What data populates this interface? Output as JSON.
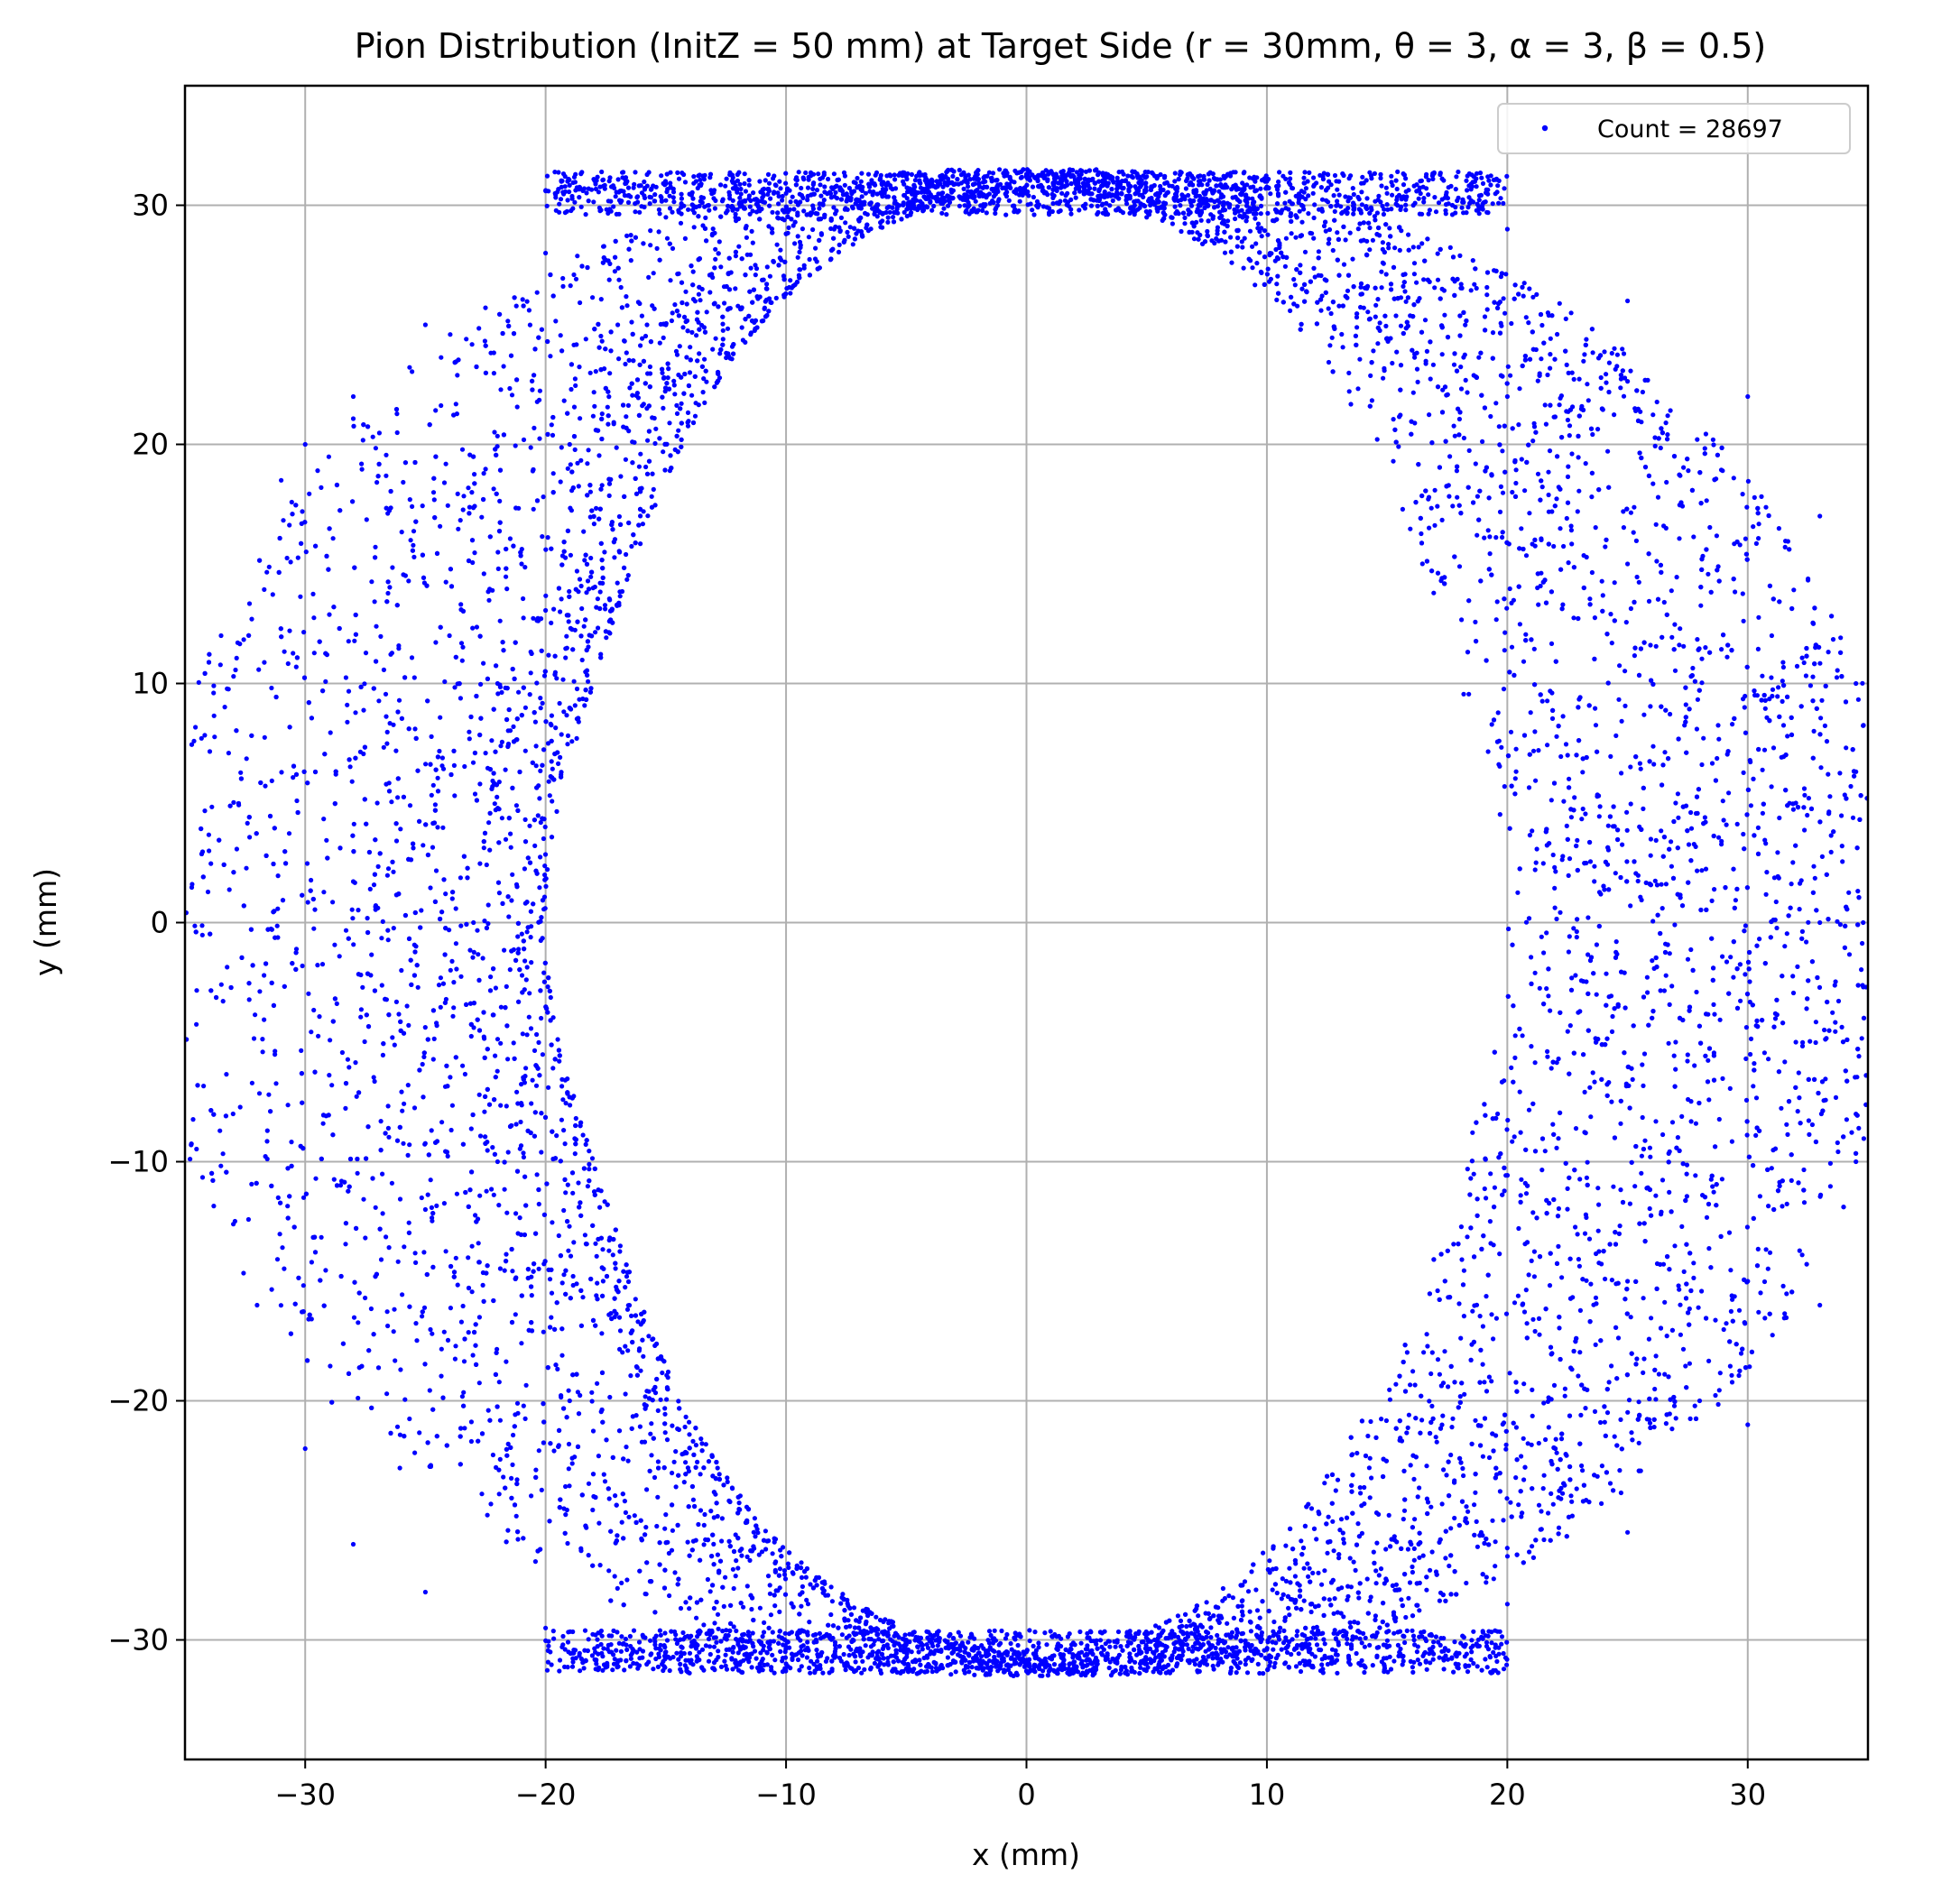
{
  "chart_data": {
    "type": "scatter",
    "title": "Pion Distribution (InitZ = 50 mm) at Target Side (r = 30mm, θ = 3, α = 3, β = 0.5)",
    "xlabel": "x (mm)",
    "ylabel": "y (mm)",
    "xlim": [
      -35,
      35
    ],
    "ylim": [
      -35,
      35
    ],
    "xticks": [
      -30,
      -20,
      -10,
      0,
      10,
      20,
      30
    ],
    "yticks": [
      -30,
      -20,
      -10,
      0,
      10,
      20,
      30
    ],
    "xtick_labels": [
      "−30",
      "−20",
      "−10",
      "0",
      "10",
      "20",
      "30"
    ],
    "ytick_labels": [
      "−30",
      "−20",
      "−10",
      "0",
      "10",
      "20",
      "30"
    ],
    "grid": true,
    "legend_position": "top-right",
    "series": [
      {
        "name": "Count = 28697",
        "color": "#0000ff",
        "marker": "dot",
        "count": 28697,
        "shape": "ring from radius ≈ 20 mm (inner edge, sharpest near left side and top/bottom at x≈0) to radius ≈ 35 mm, clipped at x = ±35; dense bands at top/bottom (y≈±30) and left inner edge (x≈−22)",
        "points": [
          [
            -31.0,
            18.5
          ],
          [
            -33.5,
            12.0
          ],
          [
            -34.0,
            3.0
          ],
          [
            -33.0,
            -8.0
          ],
          [
            -32.0,
            -16.0
          ],
          [
            -30.0,
            -22.0
          ],
          [
            -28.0,
            -26.0
          ],
          [
            -25.0,
            -28.0
          ],
          [
            -20.0,
            -29.5
          ],
          [
            -15.0,
            -30.5
          ],
          [
            -10.0,
            -31.0
          ],
          [
            -5.0,
            -31.2
          ],
          [
            0.0,
            -31.3
          ],
          [
            5.0,
            -31.0
          ],
          [
            10.0,
            -30.8
          ],
          [
            15.0,
            -30.3
          ],
          [
            20.0,
            -28.5
          ],
          [
            25.0,
            -25.5
          ],
          [
            30.0,
            -21.0
          ],
          [
            33.0,
            -16.0
          ],
          [
            34.5,
            -10.0
          ],
          [
            34.8,
            0.0
          ],
          [
            34.5,
            10.0
          ],
          [
            33.0,
            17.0
          ],
          [
            30.0,
            22.0
          ],
          [
            25.0,
            26.0
          ],
          [
            20.0,
            29.0
          ],
          [
            15.0,
            30.5
          ],
          [
            10.0,
            31.0
          ],
          [
            5.0,
            31.2
          ],
          [
            0.0,
            31.3
          ],
          [
            -5.0,
            31.2
          ],
          [
            -10.0,
            30.5
          ],
          [
            -15.0,
            29.5
          ],
          [
            -20.0,
            28.0
          ],
          [
            -25.0,
            25.0
          ],
          [
            -28.0,
            22.0
          ],
          [
            -30.0,
            20.0
          ],
          [
            -22.0,
            10.0
          ],
          [
            -23.0,
            0.0
          ],
          [
            -22.0,
            -10.0
          ],
          [
            -19.0,
            -20.0
          ],
          [
            -12.0,
            -27.0
          ],
          [
            -5.0,
            -30.0
          ],
          [
            0.0,
            -30.5
          ],
          [
            8.0,
            -29.0
          ],
          [
            16.0,
            -26.0
          ],
          [
            22.0,
            -22.0
          ],
          [
            25.0,
            -15.0
          ],
          [
            27.0,
            -5.0
          ],
          [
            27.0,
            5.0
          ],
          [
            25.0,
            15.0
          ],
          [
            20.0,
            22.0
          ],
          [
            12.0,
            27.0
          ],
          [
            5.0,
            29.5
          ],
          [
            0.0,
            30.5
          ],
          [
            -8.0,
            29.0
          ],
          [
            -15.0,
            25.0
          ],
          [
            -19.0,
            20.0
          ],
          [
            -21.0,
            15.0
          ],
          [
            -26.0,
            -2.0
          ],
          [
            -27.0,
            5.0
          ],
          [
            -25.0,
            -12.0
          ],
          [
            -24.0,
            12.0
          ],
          [
            30.0,
            -15.0
          ],
          [
            32.0,
            -5.0
          ],
          [
            32.0,
            5.0
          ],
          [
            31.0,
            12.0
          ],
          [
            33.0,
            0.0
          ],
          [
            28.0,
            -20.0
          ],
          [
            -18.0,
            -24.0
          ],
          [
            -17.0,
            25.0
          ]
        ]
      }
    ]
  }
}
